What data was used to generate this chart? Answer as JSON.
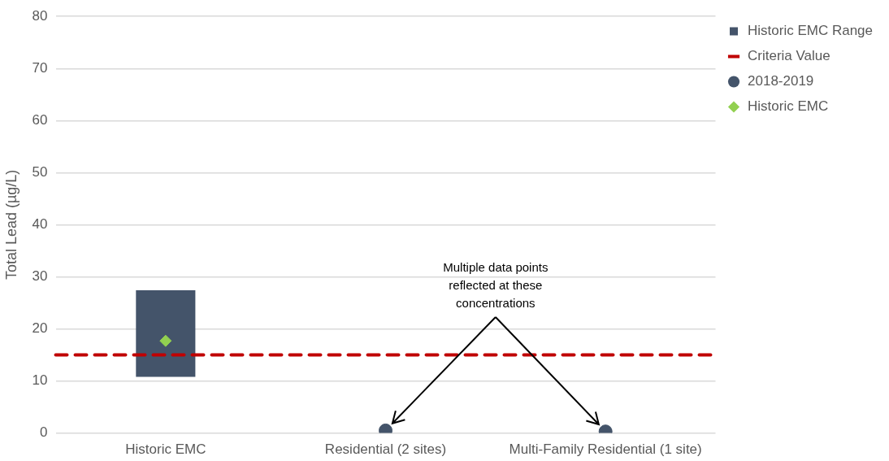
{
  "chart_data": {
    "type": "bar",
    "categories": [
      "Historic EMC",
      "Residential (2 sites)",
      "Multi-Family Residential (1 site)"
    ],
    "ylabel": "Total Lead (µg/L)",
    "ylim": [
      0,
      80
    ],
    "yticks": [
      0,
      10,
      20,
      30,
      40,
      50,
      60,
      70,
      80
    ],
    "grid": "y",
    "legend": "top right",
    "series": [
      {
        "name": "Historic EMC Range",
        "color": "#44546a",
        "base": [
          10.8,
          null,
          null
        ],
        "values": [
          16.6,
          null,
          null
        ]
      },
      {
        "name": "2018-2019",
        "type": "scatter",
        "marker": "circle",
        "color": "#44546a",
        "x": [
          "Residential (2 sites)",
          "Multi-Family Residential (1 site)"
        ],
        "values": [
          0.5,
          0.3
        ]
      },
      {
        "name": "Historic EMC",
        "type": "scatter",
        "marker": "diamond",
        "color": "#92d050",
        "x": [
          "Historic EMC"
        ],
        "values": [
          17.7
        ]
      }
    ],
    "ref_lines": [
      {
        "axis": "y",
        "value": 15,
        "label": "Criteria Value",
        "color": "#c00000",
        "line_style": "dashed"
      }
    ],
    "annotations": [
      {
        "text": "Multiple data points reflected at these concentrations"
      }
    ]
  }
}
